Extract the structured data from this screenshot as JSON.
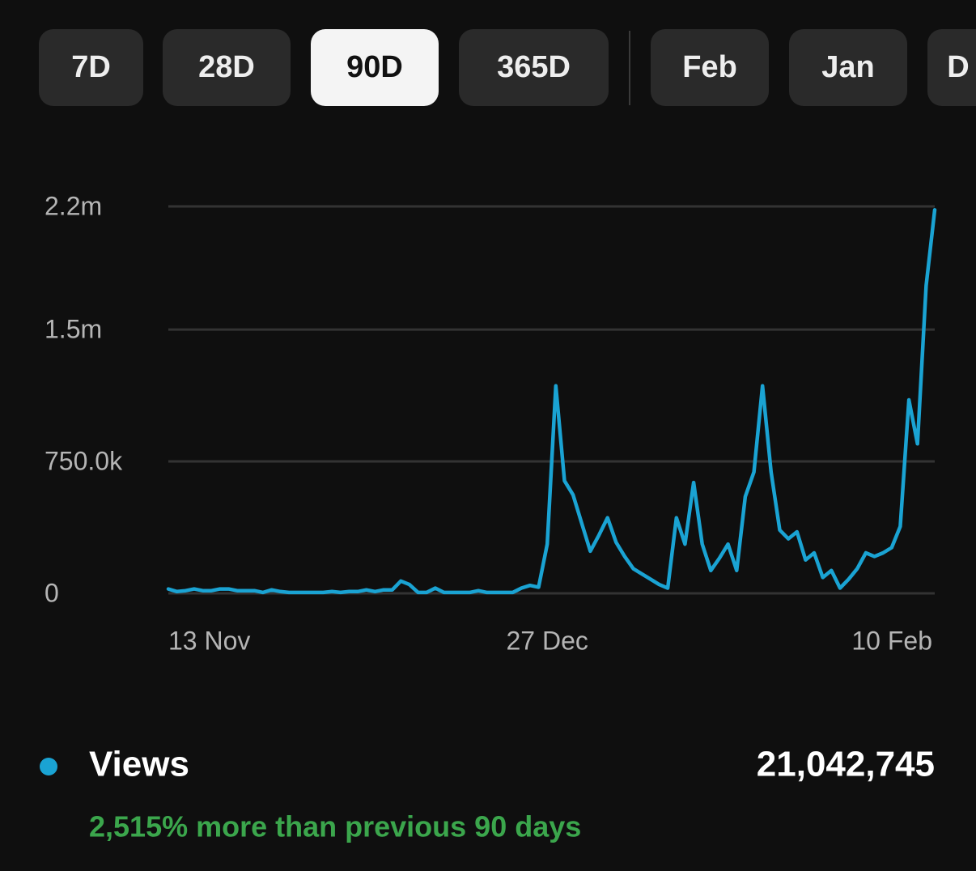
{
  "tabs": [
    {
      "label": "7D"
    },
    {
      "label": "28D"
    },
    {
      "label": "90D",
      "selected": true
    },
    {
      "label": "365D"
    },
    {
      "label": "Feb"
    },
    {
      "label": "Jan"
    },
    {
      "label": "D"
    }
  ],
  "chart_data": {
    "type": "line",
    "categories": [
      "13 Nov",
      null,
      null,
      null,
      null,
      null,
      null,
      null,
      null,
      null,
      null,
      null,
      null,
      null,
      null,
      null,
      null,
      null,
      null,
      null,
      null,
      null,
      null,
      null,
      null,
      null,
      null,
      null,
      null,
      null,
      null,
      null,
      null,
      null,
      null,
      null,
      null,
      null,
      null,
      null,
      null,
      null,
      null,
      null,
      "27 Dec",
      null,
      null,
      null,
      null,
      null,
      null,
      null,
      null,
      null,
      null,
      null,
      null,
      null,
      null,
      null,
      null,
      null,
      null,
      null,
      null,
      null,
      null,
      null,
      null,
      null,
      null,
      null,
      null,
      null,
      null,
      null,
      null,
      null,
      null,
      null,
      null,
      null,
      null,
      null,
      null,
      null,
      null,
      null,
      null,
      "10 Feb"
    ],
    "series": [
      {
        "name": "Views",
        "color": "#1aa3d3",
        "values": [
          25000,
          10000,
          15000,
          25000,
          15000,
          15000,
          25000,
          25000,
          15000,
          15000,
          15000,
          5000,
          20000,
          10000,
          5000,
          5000,
          5000,
          5000,
          5000,
          10000,
          5000,
          10000,
          10000,
          20000,
          10000,
          20000,
          20000,
          70000,
          50000,
          5000,
          5000,
          30000,
          5000,
          5000,
          5000,
          5000,
          15000,
          5000,
          5000,
          5000,
          5000,
          30000,
          45000,
          35000,
          280000,
          1180000,
          640000,
          560000,
          400000,
          240000,
          330000,
          430000,
          290000,
          210000,
          140000,
          110000,
          80000,
          50000,
          30000,
          430000,
          280000,
          630000,
          280000,
          130000,
          200000,
          280000,
          130000,
          550000,
          690000,
          1180000,
          690000,
          360000,
          310000,
          350000,
          190000,
          230000,
          90000,
          130000,
          30000,
          80000,
          140000,
          230000,
          210000,
          230000,
          260000,
          380000,
          1100000,
          850000,
          1750000,
          2180000
        ]
      }
    ],
    "ylim": [
      0,
      2200000
    ],
    "yticks": [
      0,
      {
        "value": 750000,
        "label": "750.0k"
      },
      {
        "value": 1500000,
        "label": "1.5m"
      },
      {
        "value": 2200000,
        "label": "2.2m"
      }
    ],
    "grid": true
  },
  "summary": {
    "total": "21,042,745",
    "change": "2,515% more than previous 90 days"
  }
}
